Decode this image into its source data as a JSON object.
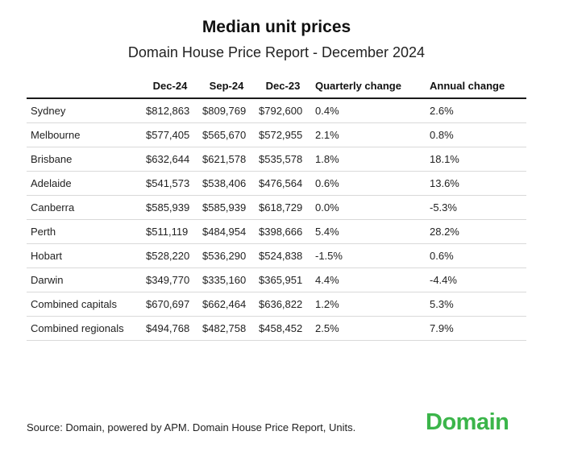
{
  "title": "Median unit prices",
  "subtitle": "Domain House Price Report - December 2024",
  "chart_data": {
    "type": "table",
    "title": "Median unit prices",
    "subtitle": "Domain House Price Report - December 2024",
    "columns": [
      "",
      "Dec-24",
      "Sep-24",
      "Dec-23",
      "Quarterly change",
      "Annual change"
    ],
    "rows": [
      [
        "Sydney",
        "$812,863",
        "$809,769",
        "$792,600",
        "0.4%",
        "2.6%"
      ],
      [
        "Melbourne",
        "$577,405",
        "$565,670",
        "$572,955",
        "2.1%",
        "0.8%"
      ],
      [
        "Brisbane",
        "$632,644",
        "$621,578",
        "$535,578",
        "1.8%",
        "18.1%"
      ],
      [
        "Adelaide",
        "$541,573",
        "$538,406",
        "$476,564",
        "0.6%",
        "13.6%"
      ],
      [
        "Canberra",
        "$585,939",
        "$585,939",
        "$618,729",
        "0.0%",
        "-5.3%"
      ],
      [
        "Perth",
        "$511,119",
        "$484,954",
        "$398,666",
        "5.4%",
        "28.2%"
      ],
      [
        "Hobart",
        "$528,220",
        "$536,290",
        "$524,838",
        "-1.5%",
        "0.6%"
      ],
      [
        "Darwin",
        "$349,770",
        "$335,160",
        "$365,951",
        "4.4%",
        "-4.4%"
      ],
      [
        "Combined capitals",
        "$670,697",
        "$662,464",
        "$636,822",
        "1.2%",
        "5.3%"
      ],
      [
        "Combined regionals",
        "$494,768",
        "$482,758",
        "$458,452",
        "2.5%",
        "7.9%"
      ]
    ]
  },
  "source": "Source: Domain, powered by APM. Domain House Price Report, Units.",
  "logo_text": "Domain",
  "colors": {
    "brand_green": "#3bb54a",
    "header_rule": "#1a1a1a",
    "row_rule": "#d9d9d9"
  }
}
